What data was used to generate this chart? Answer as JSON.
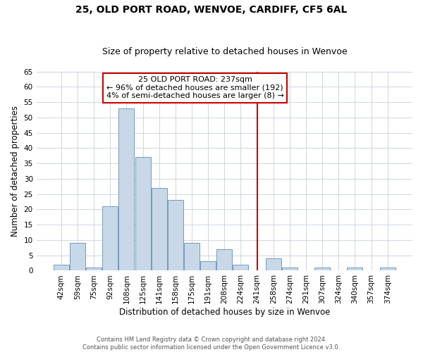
{
  "title": "25, OLD PORT ROAD, WENVOE, CARDIFF, CF5 6AL",
  "subtitle": "Size of property relative to detached houses in Wenvoe",
  "xlabel": "Distribution of detached houses by size in Wenvoe",
  "ylabel": "Number of detached properties",
  "bar_color": "#c8d8e8",
  "bar_edge_color": "#6090b0",
  "background_color": "#ffffff",
  "grid_color": "#c8d0dc",
  "bins": [
    "42sqm",
    "59sqm",
    "75sqm",
    "92sqm",
    "108sqm",
    "125sqm",
    "141sqm",
    "158sqm",
    "175sqm",
    "191sqm",
    "208sqm",
    "224sqm",
    "241sqm",
    "258sqm",
    "274sqm",
    "291sqm",
    "307sqm",
    "324sqm",
    "340sqm",
    "357sqm",
    "374sqm"
  ],
  "values": [
    2,
    9,
    1,
    21,
    53,
    37,
    27,
    23,
    9,
    3,
    7,
    2,
    0,
    4,
    1,
    0,
    1,
    0,
    1,
    0,
    1
  ],
  "ylim": [
    0,
    65
  ],
  "yticks": [
    0,
    5,
    10,
    15,
    20,
    25,
    30,
    35,
    40,
    45,
    50,
    55,
    60,
    65
  ],
  "vline_x_index": 12,
  "vline_color": "#cc0000",
  "annotation_title": "25 OLD PORT ROAD: 237sqm",
  "annotation_line1": "← 96% of detached houses are smaller (192)",
  "annotation_line2": "4% of semi-detached houses are larger (8) →",
  "annotation_box_color": "#cc0000",
  "footer1": "Contains HM Land Registry data © Crown copyright and database right 2024.",
  "footer2": "Contains public sector information licensed under the Open Government Licence v3.0.",
  "title_fontsize": 10,
  "subtitle_fontsize": 9,
  "tick_fontsize": 7.5,
  "label_fontsize": 8.5,
  "annotation_fontsize": 8
}
